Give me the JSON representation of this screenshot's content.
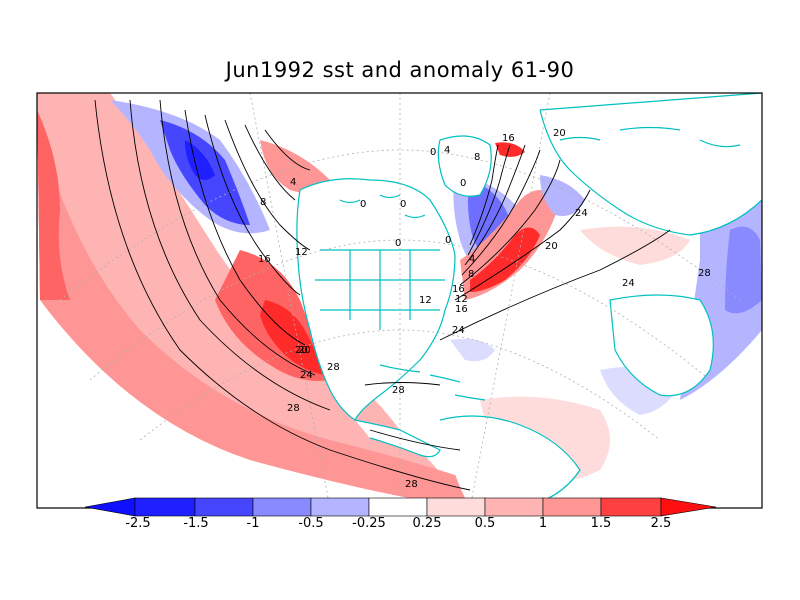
{
  "title": "Jun1992 sst and anomaly 61-90",
  "colors": {
    "neg_strong": "#1f1fff",
    "neg_mid": "#4646ff",
    "neg_light": "#8a8aff",
    "neg_faint": "#b4b4ff",
    "neg_pale": "#dcdcff",
    "neutral": "#ffffff",
    "pos_pale": "#ffdcdc",
    "pos_faint": "#ffb4b4",
    "pos_light": "#ff9696",
    "pos_mid": "#ff6464",
    "pos_strong": "#ff2b2b",
    "coast": "#00c0c0",
    "contour": "#000000"
  },
  "colorbar": {
    "labels": [
      "-2.5",
      "-1.5",
      "-1",
      "-0.5",
      "-0.25",
      "0.25",
      "0.5",
      "1",
      "1.5",
      "2.5"
    ]
  },
  "contour_labels": [
    "4",
    "8",
    "12",
    "16",
    "20",
    "24",
    "28",
    "0",
    "0",
    "0",
    "0",
    "0",
    "4",
    "8",
    "12",
    "16",
    "20",
    "24",
    "28",
    "12",
    "16",
    "20",
    "24",
    "28",
    "0",
    "4",
    "8",
    "16",
    "20",
    "24",
    "28",
    "28"
  ]
}
